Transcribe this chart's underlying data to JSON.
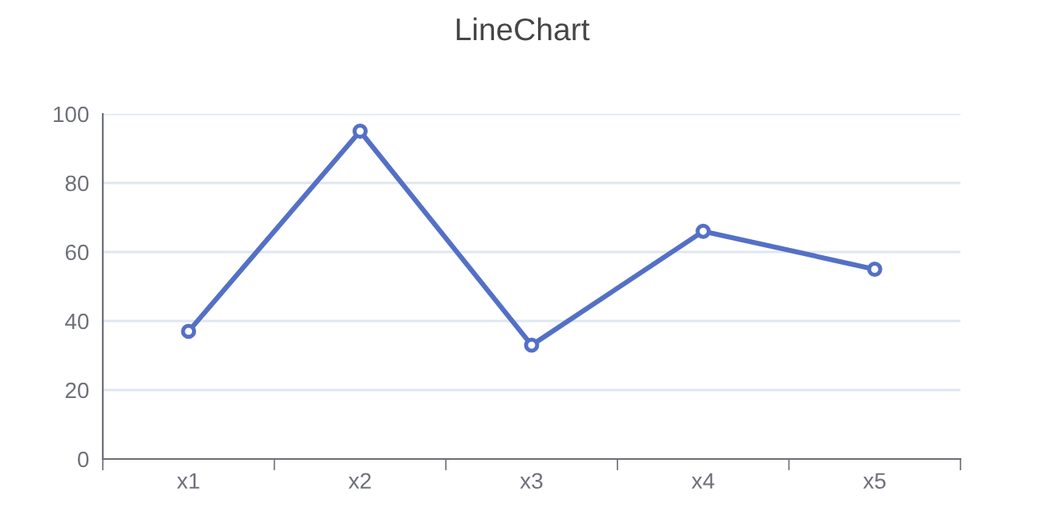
{
  "chart_data": {
    "type": "line",
    "title": "LineChart",
    "categories": [
      "x1",
      "x2",
      "x3",
      "x4",
      "x5"
    ],
    "series": [
      {
        "color": "#5470c6",
        "values": [
          37,
          95,
          33,
          66,
          55
        ]
      }
    ],
    "ylim": [
      0,
      100
    ],
    "yticks": [
      0,
      20,
      40,
      60,
      80,
      100
    ],
    "grid": "y",
    "marker": "circle",
    "line_style": "solid",
    "legend": false
  }
}
